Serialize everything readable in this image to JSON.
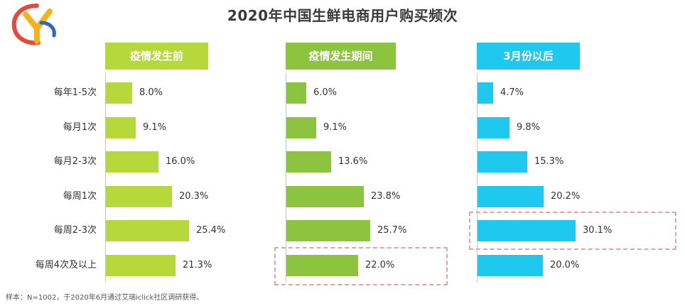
{
  "title": "2020年中国生鲜电商用户购买频次",
  "note": "样本：N=1002，于2020年6月通过艾瑞iclick社区调研获得。",
  "colors": {
    "green": "#9cc83a",
    "blue": "#1fc8ee",
    "highlight": "#e0a3a7"
  },
  "chart_data": {
    "type": "bar",
    "orientation": "horizontal",
    "title": "2020年中国生鲜电商用户购买频次",
    "categories": [
      "每年1-5次",
      "每月1次",
      "每月2-3次",
      "每周1次",
      "每周2-3次",
      "每周4次及以上"
    ],
    "unit": "%",
    "series": [
      {
        "name": "疫情发生前",
        "values": [
          8.0,
          9.1,
          16.0,
          20.3,
          25.4,
          21.3
        ],
        "labels": [
          "8.0%",
          "9.1%",
          "16.0%",
          "20.3%",
          "25.4%",
          "21.3%"
        ],
        "color": "#b6d83a"
      },
      {
        "name": "疫情发生期间",
        "values": [
          6.0,
          9.1,
          13.6,
          23.8,
          25.7,
          22.0
        ],
        "labels": [
          "6.0%",
          "9.1%",
          "13.6%",
          "23.8%",
          "25.7%",
          "22.0%"
        ],
        "color": "#8cc43f",
        "highlight_category": "每周4次及以上"
      },
      {
        "name": "3月份以后",
        "values": [
          4.7,
          9.8,
          15.3,
          20.2,
          30.1,
          20.0
        ],
        "labels": [
          "4.7%",
          "9.8%",
          "15.3%",
          "20.2%",
          "30.1%",
          "20.0%"
        ],
        "color": "#1fc8ee",
        "highlight_category": "每周2-3次"
      }
    ]
  }
}
